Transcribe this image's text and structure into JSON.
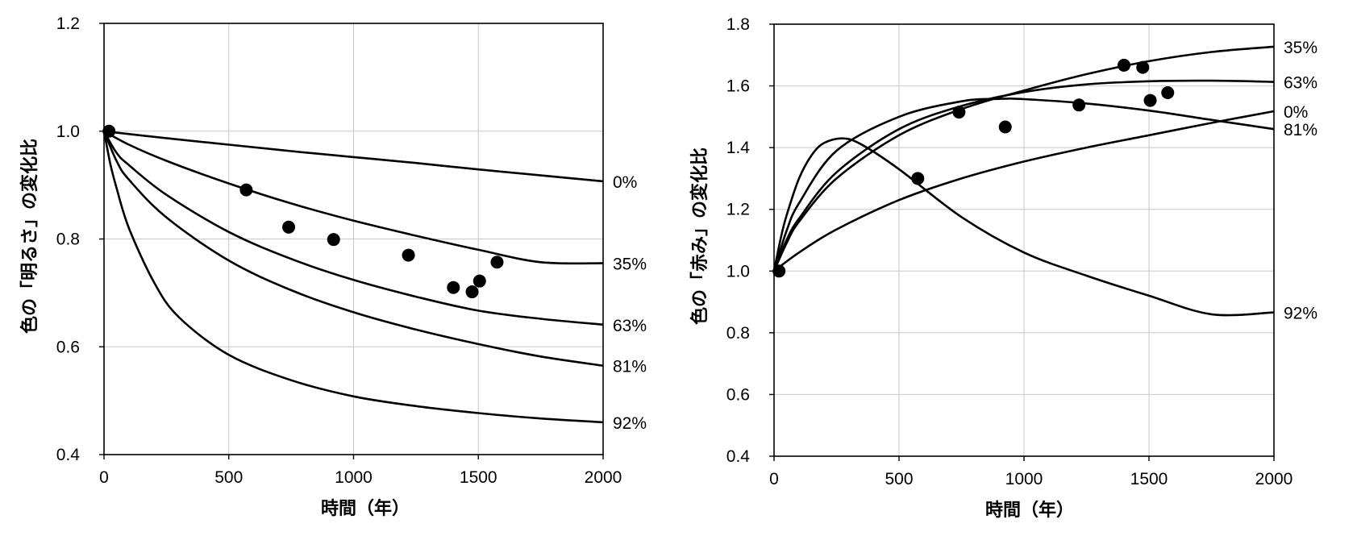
{
  "chart_data": [
    {
      "type": "scatter",
      "xlabel": "時間（年）",
      "ylabel": "色の「明るさ」の変化比",
      "xlim": [
        0,
        2000
      ],
      "ylim": [
        0.4,
        1.2
      ],
      "x_ticks": [
        "0",
        "500",
        "1000",
        "1500",
        "2000"
      ],
      "y_ticks": [
        "0.4",
        "0.6",
        "0.8",
        "1.0",
        "1.2"
      ],
      "grid": true,
      "points": [
        {
          "x": 20,
          "y": 1.0
        },
        {
          "x": 570,
          "y": 0.891
        },
        {
          "x": 740,
          "y": 0.822
        },
        {
          "x": 920,
          "y": 0.799
        },
        {
          "x": 1220,
          "y": 0.77
        },
        {
          "x": 1400,
          "y": 0.71
        },
        {
          "x": 1475,
          "y": 0.702
        },
        {
          "x": 1505,
          "y": 0.722
        },
        {
          "x": 1575,
          "y": 0.757
        }
      ],
      "series": [
        {
          "label": "0%",
          "x": [
            0,
            250,
            500,
            750,
            1000,
            1250,
            1500,
            1750,
            2000
          ],
          "y": [
            1.0,
            0.987,
            0.975,
            0.963,
            0.952,
            0.941,
            0.929,
            0.918,
            0.907
          ]
        },
        {
          "label": "35%",
          "x": [
            0,
            100,
            250,
            500,
            750,
            1000,
            1250,
            1500,
            1750,
            2000
          ],
          "y": [
            1.0,
            0.975,
            0.945,
            0.903,
            0.866,
            0.834,
            0.806,
            0.78,
            0.757,
            0.755
          ]
        },
        {
          "label": "63%",
          "x": [
            0,
            50,
            100,
            250,
            500,
            750,
            1000,
            1250,
            1500,
            1750,
            2000
          ],
          "y": [
            1.0,
            0.96,
            0.937,
            0.882,
            0.813,
            0.763,
            0.724,
            0.693,
            0.667,
            0.652,
            0.641
          ]
        },
        {
          "label": "81%",
          "x": [
            0,
            50,
            100,
            250,
            500,
            750,
            1000,
            1250,
            1500,
            1750,
            2000
          ],
          "y": [
            1.0,
            0.945,
            0.91,
            0.84,
            0.76,
            0.705,
            0.664,
            0.632,
            0.605,
            0.582,
            0.565
          ]
        },
        {
          "label": "92%",
          "x": [
            0,
            25,
            50,
            100,
            200,
            300,
            500,
            750,
            1000,
            1250,
            1500,
            1750,
            2000
          ],
          "y": [
            1.0,
            0.94,
            0.895,
            0.82,
            0.72,
            0.655,
            0.585,
            0.538,
            0.508,
            0.49,
            0.477,
            0.467,
            0.46
          ]
        }
      ]
    },
    {
      "type": "scatter",
      "xlabel": "時間（年）",
      "ylabel": "色の「赤み」の変化比",
      "xlim": [
        0,
        2000
      ],
      "ylim": [
        0.4,
        1.8
      ],
      "x_ticks": [
        "0",
        "500",
        "1000",
        "1500",
        "2000"
      ],
      "y_ticks": [
        "0.4",
        "0.6",
        "0.8",
        "1.0",
        "1.2",
        "1.4",
        "1.6",
        "1.8"
      ],
      "grid": true,
      "points": [
        {
          "x": 20,
          "y": 1.0
        },
        {
          "x": 575,
          "y": 1.3
        },
        {
          "x": 740,
          "y": 1.515
        },
        {
          "x": 925,
          "y": 1.467
        },
        {
          "x": 1220,
          "y": 1.538
        },
        {
          "x": 1400,
          "y": 1.667
        },
        {
          "x": 1475,
          "y": 1.66
        },
        {
          "x": 1505,
          "y": 1.553
        },
        {
          "x": 1575,
          "y": 1.578
        }
      ],
      "series": [
        {
          "label": "0%",
          "x": [
            0,
            100,
            250,
            500,
            750,
            1000,
            1250,
            1500,
            1750,
            2000
          ],
          "y": [
            1.0,
            1.06,
            1.135,
            1.23,
            1.3,
            1.355,
            1.4,
            1.44,
            1.48,
            1.518
          ]
        },
        {
          "label": "35%",
          "x": [
            0,
            50,
            100,
            250,
            500,
            750,
            1000,
            1250,
            1500,
            1750,
            2000
          ],
          "y": [
            1.0,
            1.09,
            1.16,
            1.3,
            1.44,
            1.525,
            1.585,
            1.638,
            1.68,
            1.71,
            1.727
          ]
        },
        {
          "label": "63%",
          "x": [
            0,
            50,
            100,
            250,
            500,
            750,
            1000,
            1250,
            1500,
            1750,
            2000
          ],
          "y": [
            1.0,
            1.1,
            1.17,
            1.32,
            1.46,
            1.535,
            1.58,
            1.605,
            1.615,
            1.617,
            1.613
          ]
        },
        {
          "label": "81%",
          "x": [
            0,
            50,
            100,
            250,
            500,
            750,
            900,
            1000,
            1250,
            1500,
            1750,
            2000
          ],
          "y": [
            1.0,
            1.13,
            1.22,
            1.39,
            1.5,
            1.55,
            1.558,
            1.557,
            1.543,
            1.52,
            1.49,
            1.46
          ]
        },
        {
          "label": "92%",
          "x": [
            0,
            25,
            50,
            100,
            150,
            200,
            275,
            350,
            500,
            750,
            1000,
            1250,
            1500,
            1750,
            2000
          ],
          "y": [
            1.0,
            1.1,
            1.18,
            1.3,
            1.375,
            1.415,
            1.43,
            1.41,
            1.33,
            1.175,
            1.06,
            0.985,
            0.92,
            0.86,
            0.866
          ]
        }
      ]
    }
  ]
}
